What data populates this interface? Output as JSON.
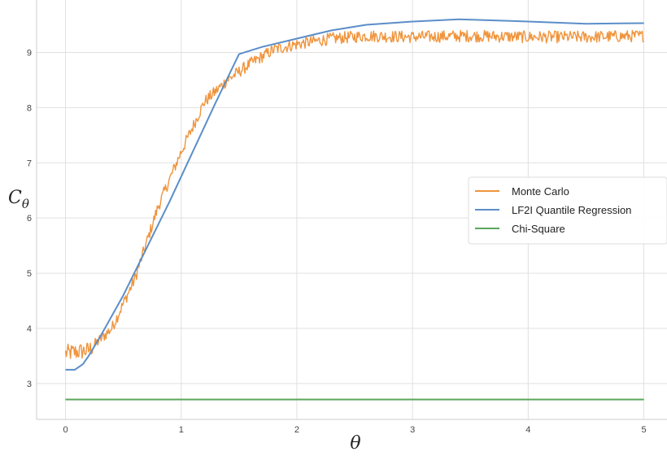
{
  "chart_data": {
    "type": "line",
    "xlabel": "θ",
    "ylabel": "C",
    "ylabel_sub": "θ",
    "xlim": [
      -0.25,
      5.2
    ],
    "ylim": [
      2.35,
      9.95
    ],
    "grid": true,
    "legend_position": "right",
    "x_ticks": [
      0,
      1,
      2,
      3,
      4,
      5
    ],
    "y_ticks": [
      3,
      4,
      5,
      6,
      7,
      8,
      9
    ],
    "series": [
      {
        "name": "Monte Carlo",
        "color": "#f0943c",
        "noisy": true,
        "points": [
          [
            0.0,
            3.55
          ],
          [
            0.2,
            3.6
          ],
          [
            0.4,
            4.0
          ],
          [
            0.6,
            4.9
          ],
          [
            0.8,
            6.2
          ],
          [
            1.0,
            7.2
          ],
          [
            1.2,
            8.1
          ],
          [
            1.4,
            8.5
          ],
          [
            1.6,
            8.8
          ],
          [
            1.8,
            9.05
          ],
          [
            2.0,
            9.15
          ],
          [
            2.3,
            9.25
          ],
          [
            2.6,
            9.3
          ],
          [
            3.0,
            9.28
          ],
          [
            3.5,
            9.3
          ],
          [
            4.0,
            9.28
          ],
          [
            4.5,
            9.28
          ],
          [
            5.0,
            9.3
          ]
        ]
      },
      {
        "name": "LF2I Quantile Regression",
        "color": "#5b8ec8",
        "noisy": false,
        "points": [
          [
            0.0,
            3.25
          ],
          [
            0.08,
            3.25
          ],
          [
            0.15,
            3.35
          ],
          [
            0.2,
            3.5
          ],
          [
            0.3,
            3.85
          ],
          [
            0.5,
            4.6
          ],
          [
            0.7,
            5.45
          ],
          [
            0.9,
            6.3
          ],
          [
            1.1,
            7.2
          ],
          [
            1.3,
            8.1
          ],
          [
            1.5,
            8.97
          ],
          [
            1.7,
            9.1
          ],
          [
            2.0,
            9.25
          ],
          [
            2.3,
            9.4
          ],
          [
            2.6,
            9.5
          ],
          [
            3.0,
            9.56
          ],
          [
            3.4,
            9.6
          ],
          [
            4.0,
            9.56
          ],
          [
            4.5,
            9.52
          ],
          [
            5.0,
            9.53
          ]
        ]
      },
      {
        "name": "Chi-Square",
        "color": "#5aa65a",
        "noisy": false,
        "points": [
          [
            0.0,
            2.71
          ],
          [
            5.0,
            2.71
          ]
        ]
      }
    ]
  }
}
